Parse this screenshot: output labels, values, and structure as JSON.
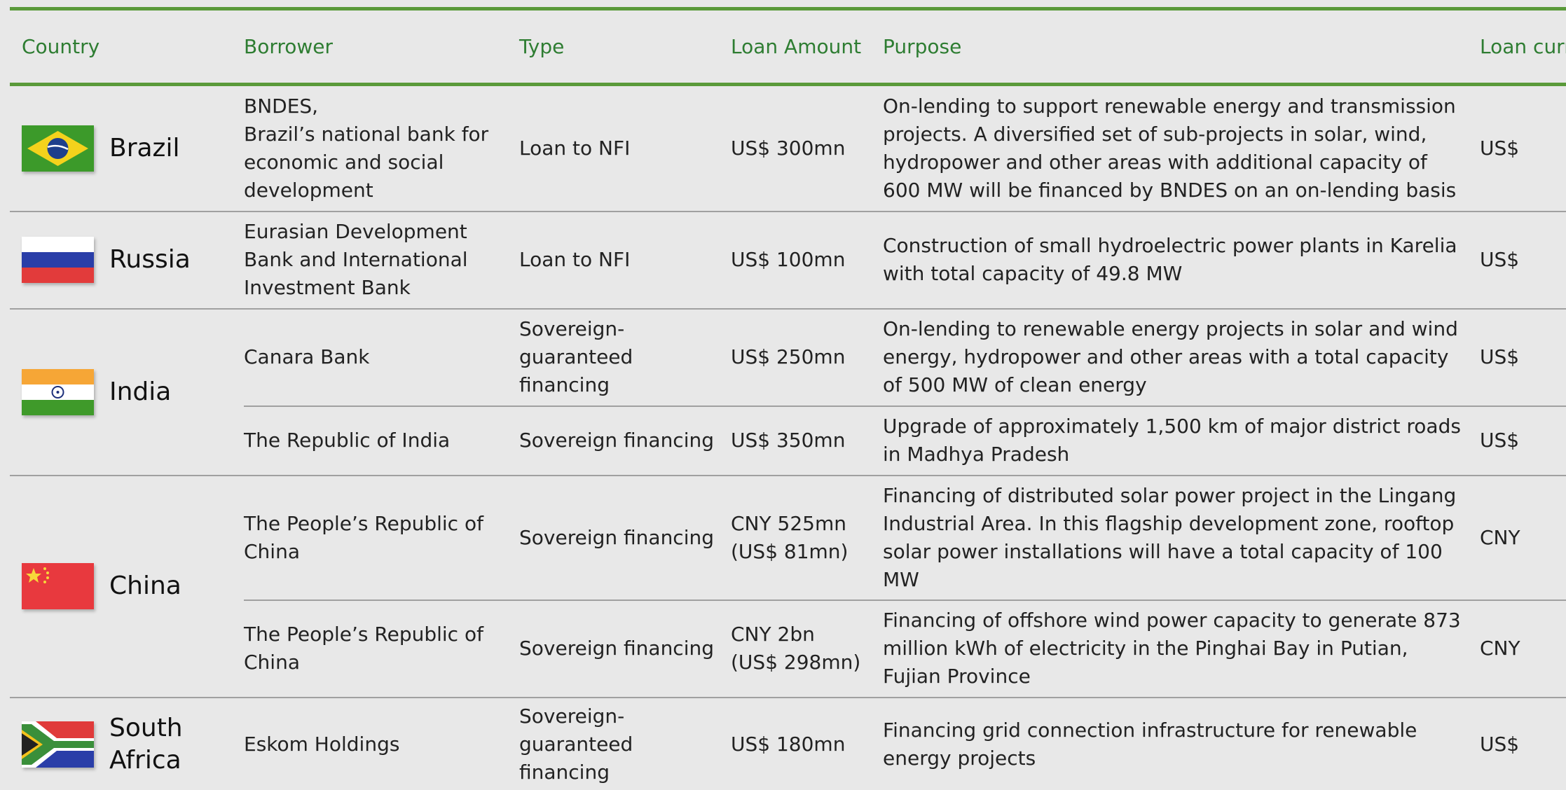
{
  "header": [
    "Country",
    "Borrower",
    "Type",
    "Loan Amount",
    "Purpose",
    "Loan currency"
  ],
  "rows": [
    {
      "country": "Brazil",
      "loans": [
        {
          "borrower": "BNDES,\nBrazil’s national bank for economic and social development",
          "type": "Loan to NFI",
          "amount": "US$ 300mn",
          "purpose": "On-lending to support renewable energy and transmission projects. A diversified set of sub-projects in solar, wind, hydropower and other areas with additional capacity of 600 MW will be financed by BNDES on an on-lending basis",
          "currency": "US$"
        }
      ]
    },
    {
      "country": "Russia",
      "loans": [
        {
          "borrower": "Eurasian Development Bank and International Investment Bank",
          "type": "Loan to NFI",
          "amount": "US$ 100mn",
          "purpose": "Construction of small hydroelectric power plants in Karelia with total capacity of 49.8 MW",
          "currency": "US$"
        }
      ]
    },
    {
      "country": "India",
      "loans": [
        {
          "borrower": "Canara Bank",
          "type": "Sovereign-guaranteed financing",
          "amount": "US$ 250mn",
          "purpose": "On-lending to renewable energy projects in solar and wind energy, hydropower and other areas with a total capacity of 500 MW of clean energy",
          "currency": "US$"
        },
        {
          "borrower": "The Republic of India",
          "type": "Sovereign financing",
          "amount": "US$ 350mn",
          "purpose": "Upgrade of approximately 1,500 km of major district roads in Madhya Pradesh",
          "currency": "US$"
        }
      ]
    },
    {
      "country": "China",
      "loans": [
        {
          "borrower": "The People’s Republic of China",
          "type": "Sovereign financing",
          "amount": "CNY 525mn\n(US$ 81mn)",
          "purpose": "Financing of distributed solar power project in the Lingang Industrial Area. In this flagship development zone, rooftop solar power installations will have a total capacity of 100 MW",
          "currency": "CNY"
        },
        {
          "borrower": "The People’s Republic of China",
          "type": "Sovereign financing",
          "amount": "CNY 2bn\n(US$ 298mn)",
          "purpose": "Financing of offshore wind power capacity to generate 873 million kWh of electricity in the Pinghai Bay in Putian, Fujian Province",
          "currency": "CNY"
        }
      ]
    },
    {
      "country": "South Africa",
      "loans": [
        {
          "borrower": "Eskom Holdings",
          "type": "Sovereign-guaranteed financing",
          "amount": "US$ 180mn",
          "purpose": "Financing grid connection infrastructure for renewable energy projects",
          "currency": "US$"
        }
      ]
    }
  ]
}
